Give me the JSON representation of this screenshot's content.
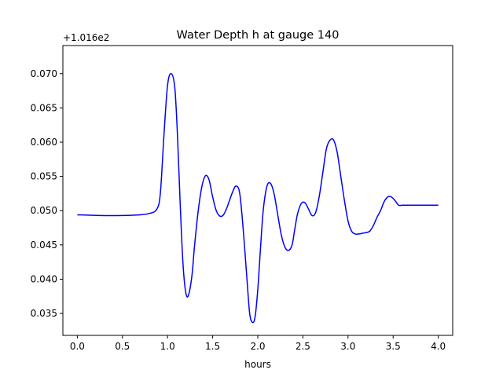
{
  "chart_data": {
    "type": "line",
    "title": "Water Depth h at gauge 140",
    "xlabel": "hours",
    "ylabel": "",
    "y_offset_label": "+1.016e2",
    "xlim": [
      -0.16,
      4.16
    ],
    "ylim": [
      0.0318,
      0.0741
    ],
    "x_ticks": [
      0.0,
      0.5,
      1.0,
      1.5,
      2.0,
      2.5,
      3.0,
      3.5,
      4.0
    ],
    "x_tick_labels": [
      "0.0",
      "0.5",
      "1.0",
      "1.5",
      "2.0",
      "2.5",
      "3.0",
      "3.5",
      "4.0"
    ],
    "y_ticks": [
      0.035,
      0.04,
      0.045,
      0.05,
      0.055,
      0.06,
      0.065,
      0.07
    ],
    "y_tick_labels": [
      "0.035",
      "0.040",
      "0.045",
      "0.050",
      "0.055",
      "0.060",
      "0.065",
      "0.070"
    ],
    "grid": false,
    "series": [
      {
        "color": "#0000ff",
        "x": [
          0.0,
          0.25,
          0.5,
          0.7,
          0.8,
          0.88,
          0.92,
          0.96,
          1.0,
          1.04,
          1.08,
          1.11,
          1.14,
          1.17,
          1.2,
          1.23,
          1.27,
          1.3,
          1.34,
          1.38,
          1.42,
          1.46,
          1.5,
          1.54,
          1.58,
          1.62,
          1.66,
          1.72,
          1.76,
          1.8,
          1.84,
          1.88,
          1.91,
          1.94,
          1.97,
          2.0,
          2.03,
          2.06,
          2.1,
          2.14,
          2.18,
          2.22,
          2.26,
          2.3,
          2.34,
          2.38,
          2.41,
          2.44,
          2.48,
          2.52,
          2.56,
          2.6,
          2.64,
          2.68,
          2.72,
          2.76,
          2.8,
          2.84,
          2.88,
          2.92,
          2.96,
          3.0,
          3.04,
          3.08,
          3.12,
          3.16,
          3.2,
          3.24,
          3.28,
          3.32,
          3.36,
          3.4,
          3.44,
          3.48,
          3.52,
          3.56,
          3.6,
          3.64,
          3.68,
          3.72,
          3.76,
          3.8,
          3.84,
          3.88,
          3.92,
          3.96,
          4.0
        ],
        "y": [
          0.0494,
          0.0493,
          0.0493,
          0.0494,
          0.0496,
          0.0502,
          0.0525,
          0.061,
          0.0683,
          0.07,
          0.068,
          0.061,
          0.051,
          0.0425,
          0.0382,
          0.0376,
          0.0405,
          0.045,
          0.05,
          0.0535,
          0.0551,
          0.0545,
          0.052,
          0.05,
          0.0492,
          0.0494,
          0.0505,
          0.0527,
          0.0536,
          0.0525,
          0.047,
          0.04,
          0.035,
          0.0337,
          0.0345,
          0.0385,
          0.0445,
          0.05,
          0.0535,
          0.054,
          0.0525,
          0.0495,
          0.0465,
          0.0447,
          0.0442,
          0.045,
          0.0473,
          0.0495,
          0.051,
          0.0512,
          0.0503,
          0.0493,
          0.0497,
          0.052,
          0.0555,
          0.059,
          0.0603,
          0.0603,
          0.0585,
          0.055,
          0.0515,
          0.0485,
          0.047,
          0.0466,
          0.0466,
          0.0467,
          0.0468,
          0.047,
          0.0478,
          0.049,
          0.05,
          0.0513,
          0.052,
          0.052,
          0.0515,
          0.0508,
          0.0508,
          0.0508,
          0.0508,
          0.0508,
          0.0508,
          0.0508,
          0.0508,
          0.0508,
          0.0508,
          0.0508,
          0.0508
        ]
      }
    ]
  }
}
